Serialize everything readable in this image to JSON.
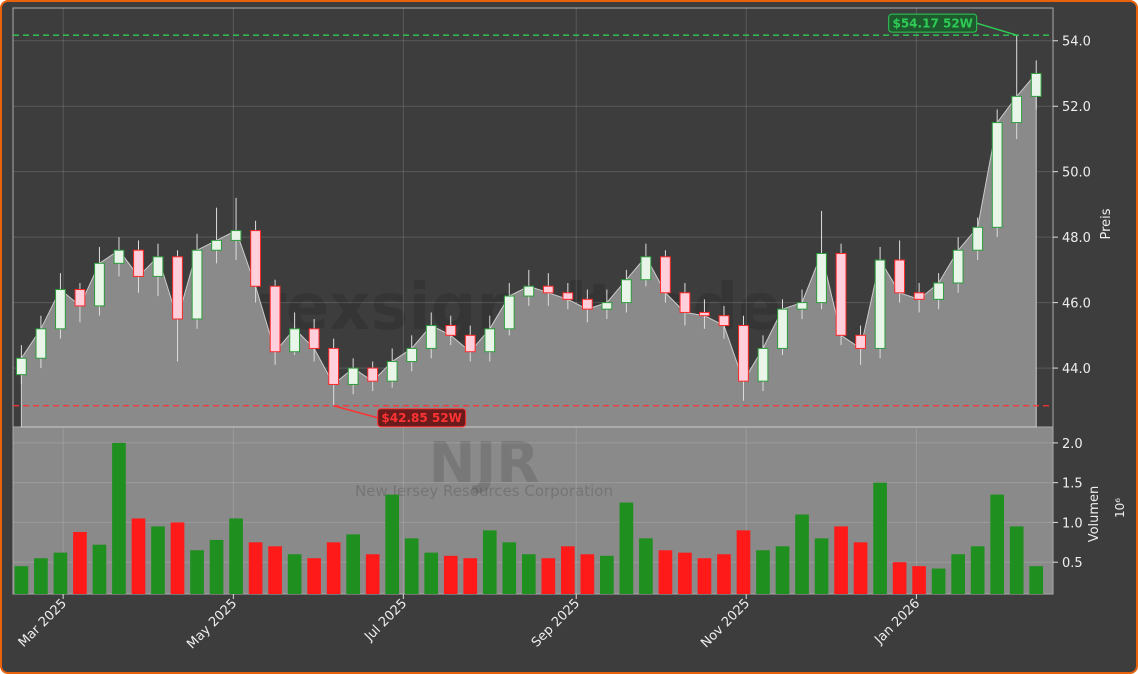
{
  "chart_data": {
    "type": "candlestick",
    "xlim": [
      -0.43,
      52.86
    ],
    "xticks": [
      {
        "value": 2.14,
        "label": "Mar 2025"
      },
      {
        "value": 10.86,
        "label": "May 2025"
      },
      {
        "value": 19.57,
        "label": "Jul 2025"
      },
      {
        "value": 28.43,
        "label": "Sep 2025"
      },
      {
        "value": 37.14,
        "label": "Nov 2025"
      },
      {
        "value": 45.86,
        "label": "Jan 2026"
      }
    ],
    "ylim": [
      42.2,
      55.0
    ],
    "yticks": [
      {
        "value": 44,
        "label": "44.0"
      },
      {
        "value": 46,
        "label": "46.0"
      },
      {
        "value": 48,
        "label": "48.0"
      },
      {
        "value": 50,
        "label": "50.0"
      },
      {
        "value": 52,
        "label": "52.0"
      },
      {
        "value": 54,
        "label": "54.0"
      }
    ],
    "y_label": "Preis",
    "grid": true,
    "up_color": "#2e9e3e",
    "down_color": "#ff2a2a",
    "area_color": "#8a8a8a",
    "open": [
      43.8,
      44.3,
      45.2,
      46.4,
      45.9,
      47.2,
      47.6,
      46.8,
      47.4,
      45.5,
      47.6,
      47.9,
      48.2,
      46.5,
      44.5,
      45.2,
      44.6,
      43.5,
      44.0,
      43.6,
      44.2,
      44.6,
      45.3,
      45.0,
      44.5,
      45.2,
      46.2,
      46.5,
      46.3,
      46.1,
      45.8,
      46.0,
      46.7,
      47.4,
      46.3,
      45.7,
      45.6,
      45.3,
      43.6,
      44.6,
      45.8,
      46.0,
      47.5,
      45.0,
      44.6,
      47.3,
      46.3,
      46.1,
      46.6,
      47.6,
      48.3,
      51.5,
      52.3
    ],
    "high": [
      44.7,
      45.6,
      46.9,
      46.6,
      47.7,
      48.0,
      47.9,
      47.8,
      47.6,
      48.1,
      48.9,
      49.2,
      48.5,
      46.7,
      45.7,
      45.5,
      44.9,
      44.3,
      44.2,
      44.6,
      45.0,
      45.7,
      45.6,
      45.3,
      45.6,
      46.6,
      47.0,
      46.9,
      46.6,
      46.4,
      46.4,
      47.0,
      47.8,
      47.6,
      46.6,
      46.1,
      45.9,
      45.6,
      45.0,
      46.1,
      46.4,
      48.8,
      47.8,
      45.3,
      47.7,
      47.9,
      46.6,
      46.9,
      48.0,
      48.6,
      51.9,
      54.17,
      53.4
    ],
    "low": [
      43.5,
      44.0,
      44.9,
      45.4,
      45.6,
      46.8,
      46.3,
      46.2,
      44.2,
      45.2,
      47.2,
      47.3,
      46.0,
      44.1,
      44.4,
      44.2,
      42.85,
      43.2,
      43.3,
      43.4,
      43.9,
      44.3,
      44.7,
      44.2,
      44.2,
      45.0,
      45.9,
      45.9,
      45.8,
      45.4,
      45.5,
      45.7,
      46.5,
      46.0,
      45.3,
      45.2,
      44.9,
      43.0,
      43.3,
      44.4,
      45.5,
      45.8,
      44.7,
      44.1,
      44.3,
      46.0,
      45.7,
      45.8,
      46.3,
      47.3,
      48.0,
      51.0,
      51.9
    ],
    "close": [
      44.3,
      45.2,
      46.4,
      45.9,
      47.2,
      47.6,
      46.8,
      47.4,
      45.5,
      47.6,
      47.9,
      48.2,
      46.5,
      44.5,
      45.2,
      44.6,
      43.5,
      44.0,
      43.6,
      44.2,
      44.6,
      45.3,
      45.0,
      44.5,
      45.2,
      46.2,
      46.5,
      46.3,
      46.1,
      45.8,
      46.0,
      46.7,
      47.4,
      46.3,
      45.7,
      45.6,
      45.3,
      43.6,
      44.6,
      45.8,
      46.0,
      47.5,
      45.0,
      44.6,
      47.3,
      46.3,
      46.1,
      46.6,
      47.6,
      48.3,
      51.5,
      52.3,
      53.0
    ],
    "volume": {
      "values": [
        0.45,
        0.55,
        0.62,
        0.88,
        0.72,
        2.0,
        1.05,
        0.95,
        1.0,
        0.65,
        0.78,
        1.05,
        0.75,
        0.7,
        0.6,
        0.55,
        0.75,
        0.85,
        0.6,
        1.35,
        0.8,
        0.62,
        0.58,
        0.55,
        0.9,
        0.75,
        0.6,
        0.55,
        0.7,
        0.6,
        0.58,
        1.25,
        0.8,
        0.65,
        0.62,
        0.55,
        0.6,
        0.9,
        0.65,
        0.7,
        1.1,
        0.8,
        0.95,
        0.75,
        1.5,
        0.5,
        0.45,
        0.42,
        0.6,
        0.7,
        1.35,
        0.95,
        0.45
      ],
      "ylim": [
        0.1,
        2.2
      ],
      "yticks": [
        0.5,
        {
          "value": 1,
          "label": "1.0"
        },
        1.5,
        {
          "value": 2,
          "label": "2.0"
        }
      ],
      "y_label": "Volumen",
      "scale_label": "10⁶",
      "up_color": "#1f8f1f",
      "down_color": "#ff1a1a"
    },
    "annotations": [
      {
        "label": "$54.17 52W",
        "value": 54.17,
        "index": 51,
        "color": "#2ecc55"
      },
      {
        "label": "$42.85 52W",
        "value": 42.85,
        "index": 16,
        "color": "#ff3333"
      }
    ],
    "watermark": {
      "brand": "forexsignaltrade",
      "symbol": "NJR",
      "company": "New Jersey Resources Corporation"
    }
  }
}
